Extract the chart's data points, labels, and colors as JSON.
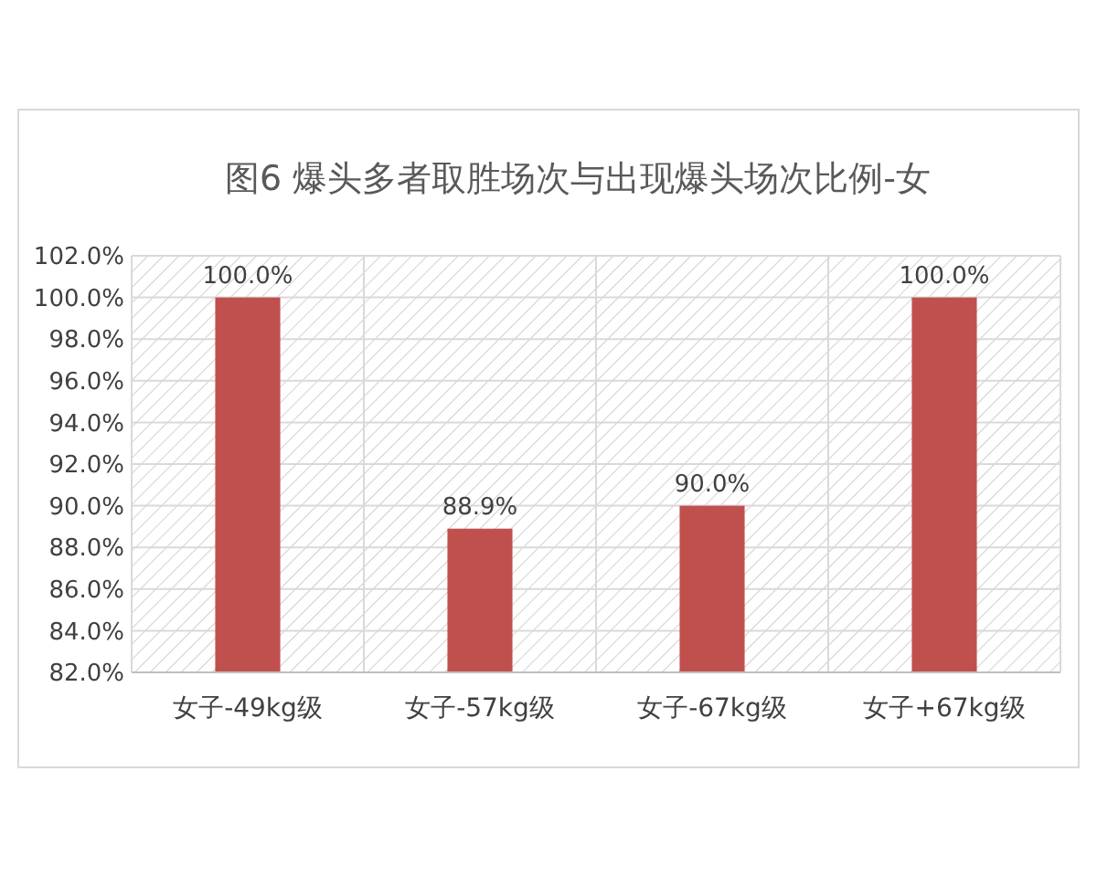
{
  "chart_data": {
    "type": "bar",
    "title": "图6 爆头多者取胜场次与出现爆头场次比例-女",
    "categories": [
      "女子-49kg级",
      "女子-57kg级",
      "女子-67kg级",
      "女子+67kg级"
    ],
    "values": [
      100,
      88.9,
      90,
      100
    ],
    "color": "#c0504d",
    "value_labels": [
      "100.0%",
      "88.9%",
      "90.0%",
      "100.0%"
    ],
    "ylim": [
      82,
      102
    ],
    "yticks": [
      {
        "value": 82,
        "label": "82.0%"
      },
      {
        "value": 84,
        "label": "84.0%"
      },
      {
        "value": 86,
        "label": "86.0%"
      },
      {
        "value": 88,
        "label": "88.0%"
      },
      {
        "value": 90,
        "label": "90.0%"
      },
      {
        "value": 92,
        "label": "92.0%"
      },
      {
        "value": 94,
        "label": "94.0%"
      },
      {
        "value": 96,
        "label": "96.0%"
      },
      {
        "value": 98,
        "label": "98.0%"
      },
      {
        "value": 100,
        "label": "100.0%"
      },
      {
        "value": 102,
        "label": "102.0%"
      }
    ],
    "grid": true
  }
}
